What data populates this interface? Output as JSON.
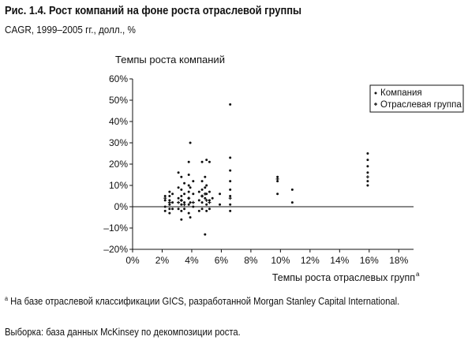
{
  "figure": {
    "title": "Рис. 1.4. Рост компаний на фоне роста отраслевой группы",
    "subtitle": "CAGR, 1999–2005 гг., долл., %"
  },
  "chart_data": {
    "type": "scatter",
    "title": "",
    "ylabel": "Темпы роста компаний",
    "xlabel": "Темпы роста отраслевых групп",
    "xlabel_footnote_mark": "a",
    "xlim": [
      0,
      19
    ],
    "ylim": [
      -20,
      60
    ],
    "x_ticks": [
      0,
      2,
      4,
      6,
      8,
      10,
      12,
      14,
      16,
      18
    ],
    "x_tick_labels": [
      "0%",
      "2%",
      "4%",
      "6%",
      "8%",
      "10%",
      "12%",
      "14%",
      "16%",
      "18%"
    ],
    "y_ticks": [
      -20,
      -10,
      0,
      10,
      20,
      30,
      40,
      50,
      60
    ],
    "y_tick_labels": [
      "–20%",
      "–10%",
      "0%",
      "10%",
      "20%",
      "30%",
      "40%",
      "50%",
      "60%"
    ],
    "legend": {
      "position": "top-right",
      "entries": [
        "Компания",
        "Отраслевая группа"
      ]
    },
    "grid": false,
    "series": [
      {
        "name": "Компания",
        "points": [
          [
            2.2,
            5
          ],
          [
            2.2,
            3
          ],
          [
            2.2,
            0
          ],
          [
            2.2,
            -2
          ],
          [
            2.5,
            7
          ],
          [
            2.5,
            5
          ],
          [
            2.5,
            3
          ],
          [
            2.5,
            1
          ],
          [
            2.5,
            -1
          ],
          [
            2.5,
            -3
          ],
          [
            2.7,
            6
          ],
          [
            2.7,
            2
          ],
          [
            2.7,
            -1
          ],
          [
            3.1,
            16
          ],
          [
            3.1,
            9
          ],
          [
            3.1,
            4
          ],
          [
            3.1,
            -1
          ],
          [
            3.3,
            14
          ],
          [
            3.3,
            8
          ],
          [
            3.3,
            5
          ],
          [
            3.3,
            3
          ],
          [
            3.3,
            1
          ],
          [
            3.3,
            -2
          ],
          [
            3.3,
            -6
          ],
          [
            3.5,
            11
          ],
          [
            3.5,
            6
          ],
          [
            3.5,
            2
          ],
          [
            3.5,
            -1
          ],
          [
            3.8,
            21
          ],
          [
            3.8,
            15
          ],
          [
            3.8,
            10
          ],
          [
            3.8,
            7
          ],
          [
            3.8,
            4
          ],
          [
            3.8,
            1
          ],
          [
            3.8,
            -3
          ],
          [
            3.9,
            30
          ],
          [
            3.9,
            9
          ],
          [
            3.9,
            2
          ],
          [
            3.9,
            -5
          ],
          [
            4.1,
            12
          ],
          [
            4.1,
            6
          ],
          [
            4.1,
            0
          ],
          [
            4.5,
            7
          ],
          [
            4.5,
            3
          ],
          [
            4.5,
            -2
          ],
          [
            4.7,
            21
          ],
          [
            4.7,
            12
          ],
          [
            4.7,
            8
          ],
          [
            4.7,
            5
          ],
          [
            4.7,
            2
          ],
          [
            4.7,
            -1
          ],
          [
            4.9,
            14
          ],
          [
            4.9,
            9
          ],
          [
            4.9,
            4
          ],
          [
            4.9,
            -13
          ],
          [
            5.0,
            22
          ],
          [
            5.0,
            10
          ],
          [
            5.0,
            6
          ],
          [
            5.0,
            1
          ],
          [
            5.0,
            -2
          ],
          [
            5.2,
            21
          ],
          [
            5.2,
            7
          ],
          [
            5.2,
            3
          ],
          [
            5.2,
            -1
          ],
          [
            5.4,
            4
          ],
          [
            5.9,
            6
          ],
          [
            5.9,
            1
          ],
          [
            6.6,
            48
          ],
          [
            6.6,
            23
          ],
          [
            6.6,
            17
          ],
          [
            6.6,
            12
          ],
          [
            6.6,
            8
          ],
          [
            6.6,
            5
          ],
          [
            6.6,
            1
          ],
          [
            6.6,
            -2
          ],
          [
            9.8,
            14
          ],
          [
            9.8,
            12
          ],
          [
            9.8,
            6
          ],
          [
            10.8,
            8
          ],
          [
            10.8,
            2
          ],
          [
            15.9,
            25
          ],
          [
            15.9,
            22
          ],
          [
            15.9,
            19
          ],
          [
            15.9,
            16
          ],
          [
            15.9,
            12
          ],
          [
            15.9,
            10
          ]
        ]
      },
      {
        "name": "Отраслевая группа",
        "points": [
          [
            2.2,
            4
          ],
          [
            2.5,
            2
          ],
          [
            3.1,
            2
          ],
          [
            3.3,
            3
          ],
          [
            3.5,
            1
          ],
          [
            3.8,
            4
          ],
          [
            4.1,
            2
          ],
          [
            4.7,
            5
          ],
          [
            4.9,
            6
          ],
          [
            5.0,
            3
          ],
          [
            5.2,
            2
          ],
          [
            6.6,
            4
          ],
          [
            9.8,
            13
          ],
          [
            15.9,
            14
          ]
        ]
      }
    ]
  },
  "notes": {
    "footnote_mark": "a",
    "footnote": "На базе отраслевой классификации GICS, разработанной Morgan Stanley Capital International.",
    "source": "Выборка: база данных McKinsey по декомпозиции роста."
  }
}
